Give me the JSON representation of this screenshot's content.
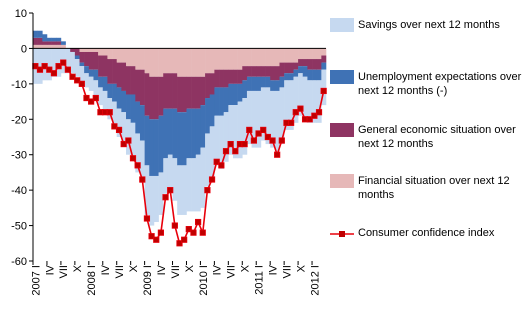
{
  "chart_data": {
    "type": "bar",
    "stacked": true,
    "categories": [
      "2007 I",
      null,
      null,
      "IV",
      null,
      null,
      "VII",
      null,
      null,
      "X",
      null,
      null,
      "2008 I",
      null,
      null,
      "IV",
      null,
      null,
      "VII",
      null,
      null,
      "X",
      null,
      null,
      "2009 I",
      null,
      null,
      "IV",
      null,
      null,
      "VII",
      null,
      null,
      "X",
      null,
      null,
      "2010 I",
      null,
      null,
      "IV",
      null,
      null,
      "VII",
      null,
      null,
      "X",
      null,
      null,
      "2011 I",
      null,
      null,
      "IV",
      null,
      null,
      "VII",
      null,
      null,
      "X",
      null,
      null,
      "2012 I",
      null,
      null
    ],
    "ylim": [
      -60,
      10
    ],
    "yticks": [
      10,
      0,
      -10,
      -20,
      -30,
      -40,
      -50,
      -60
    ],
    "grid": false,
    "legend": "right",
    "series": [
      {
        "name": "Savings over next 12 months",
        "color": "#c6d9f0",
        "values": [
          -10,
          -10,
          -9,
          -9,
          -8,
          -8,
          -7,
          -7,
          -6,
          -5,
          -5,
          -4,
          -4,
          -5,
          -5,
          -6,
          -6,
          -7,
          -8,
          -9,
          -10,
          -10,
          -11,
          -12,
          -14,
          -14,
          -13,
          -12,
          -10,
          -10,
          -12,
          -14,
          -14,
          -15,
          -15,
          -16,
          -17,
          -15,
          -15,
          -14,
          -15,
          -14,
          -14,
          -15,
          -16,
          -16,
          -15,
          -16,
          -16,
          -15,
          -16,
          -16,
          -17,
          -16,
          -14,
          -14,
          -13,
          -12,
          -12,
          -12,
          -12,
          -12,
          -10
        ]
      },
      {
        "name": "Unemployment expectations over next 12 months  (-)",
        "color": "#3f72b5",
        "values": [
          2,
          2,
          2,
          1,
          1,
          1,
          1,
          0,
          0,
          -1,
          -1,
          -2,
          -2,
          -3,
          -3,
          -4,
          -4,
          -5,
          -6,
          -6,
          -7,
          -8,
          -9,
          -10,
          -14,
          -16,
          -16,
          -16,
          -14,
          -13,
          -14,
          -15,
          -15,
          -14,
          -14,
          -13,
          -12,
          -10,
          -9,
          -8,
          -8,
          -7,
          -6,
          -6,
          -5,
          -5,
          -4,
          -4,
          -4,
          -3,
          -3,
          -3,
          -3,
          -3,
          -2,
          -2,
          -2,
          -2,
          -3,
          -3,
          -3,
          -3,
          -2
        ]
      },
      {
        "name": "General economic situation over next 12 months",
        "color": "#8e3462",
        "values": [
          2,
          2,
          1,
          1,
          1,
          1,
          0,
          0,
          -1,
          -2,
          -3,
          -4,
          -5,
          -5,
          -6,
          -6,
          -7,
          -7,
          -7,
          -8,
          -8,
          -8,
          -9,
          -10,
          -12,
          -12,
          -12,
          -11,
          -10,
          -10,
          -10,
          -10,
          -10,
          -9,
          -9,
          -9,
          -8,
          -7,
          -6,
          -5,
          -5,
          -5,
          -4,
          -4,
          -4,
          -4,
          -3,
          -3,
          -3,
          -3,
          -3,
          -4,
          -4,
          -4,
          -3,
          -3,
          -2,
          -2,
          -2,
          -3,
          -3,
          -3,
          -2
        ]
      },
      {
        "name": "Financial situation  over next 12 months",
        "color": "#e6b8b8",
        "values": [
          1,
          1,
          1,
          1,
          1,
          1,
          1,
          0,
          0,
          0,
          -1,
          -1,
          -1,
          -1,
          -2,
          -2,
          -3,
          -3,
          -4,
          -4,
          -5,
          -5,
          -6,
          -6,
          -7,
          -8,
          -8,
          -8,
          -7,
          -7,
          -7,
          -8,
          -8,
          -8,
          -8,
          -8,
          -8,
          -7,
          -7,
          -6,
          -6,
          -6,
          -6,
          -6,
          -6,
          -5,
          -5,
          -5,
          -5,
          -5,
          -5,
          -5,
          -5,
          -4,
          -4,
          -4,
          -4,
          -3,
          -3,
          -3,
          -3,
          -3,
          -2
        ]
      },
      {
        "name": "Consumer confidence  index",
        "type": "line",
        "color": "#e8000b",
        "values": [
          -5,
          -6,
          -5,
          -6,
          -7,
          -5,
          -4,
          -6,
          -8,
          -9,
          -10,
          -14,
          -15,
          -14,
          -18,
          -18,
          -18,
          -22,
          -23,
          -27,
          -26,
          -31,
          -33,
          -37,
          -48,
          -53,
          -54,
          -52,
          -42,
          -40,
          -50,
          -55,
          -54,
          -51,
          -52,
          -49,
          -52,
          -40,
          -37,
          -32,
          -33,
          -29,
          -27,
          -29,
          -27,
          -27,
          -23,
          -26,
          -24,
          -23,
          -25,
          -26,
          -30,
          -26,
          -21,
          -21,
          -18,
          -17,
          -20,
          -20,
          -19,
          -18,
          -12
        ]
      }
    ]
  }
}
